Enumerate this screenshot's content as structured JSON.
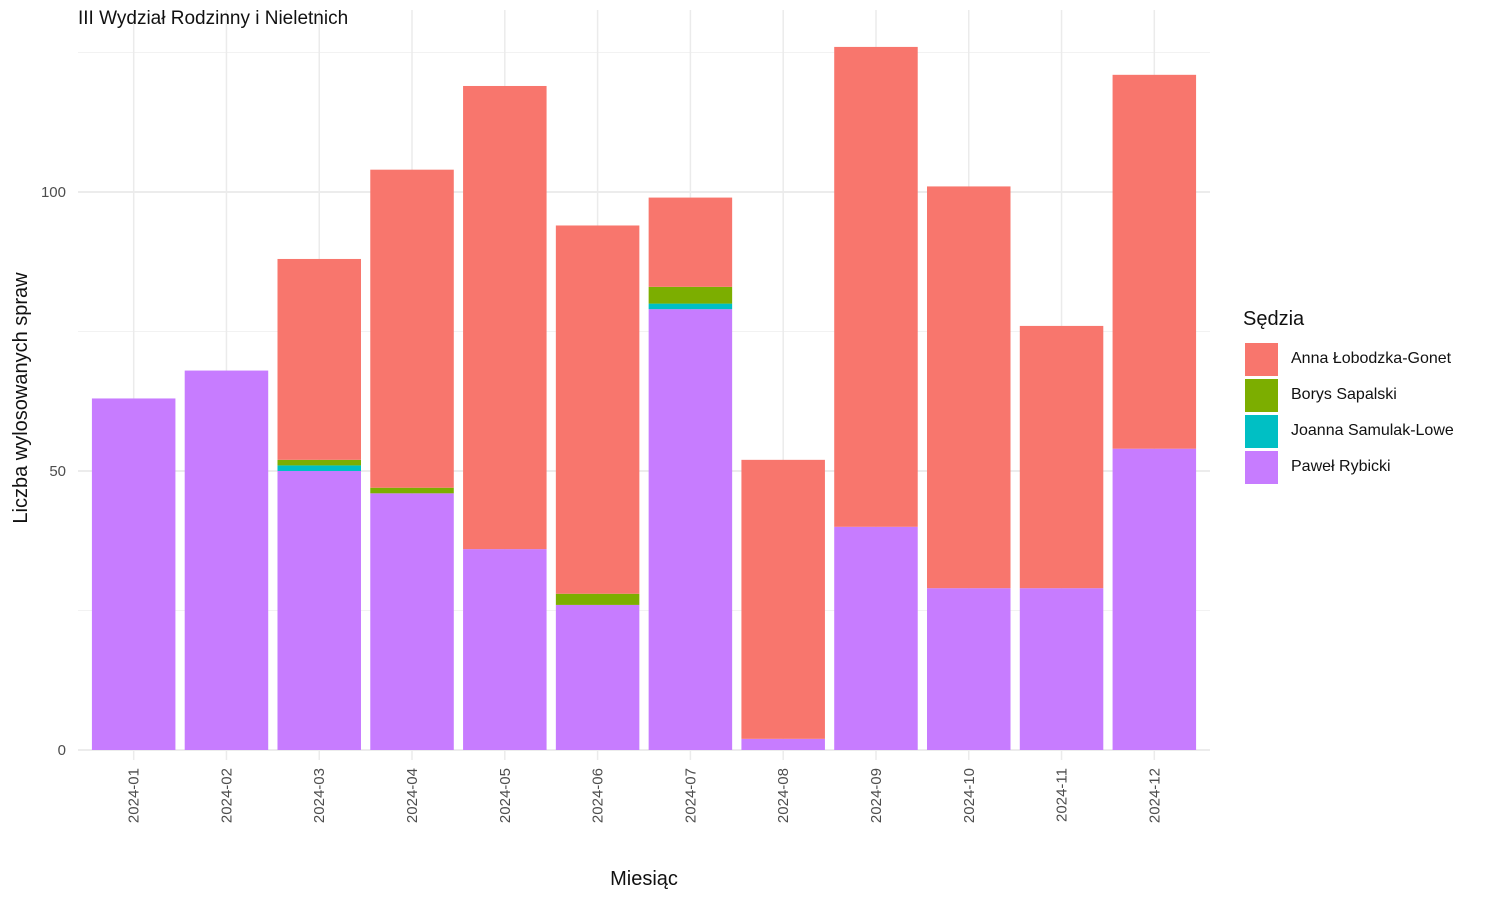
{
  "chart_data": {
    "type": "bar",
    "stacked": true,
    "title": "III Wydział Rodzinny i Nieletnich",
    "xlabel": "Miesiąc",
    "ylabel": "Liczba wylosowanych spraw",
    "ylim": [
      0,
      128
    ],
    "yticks": [
      0,
      50,
      100
    ],
    "grid": true,
    "legend_title": "Sędzia",
    "legend_position": "right",
    "categories": [
      "2024-01",
      "2024-02",
      "2024-03",
      "2024-04",
      "2024-05",
      "2024-06",
      "2024-07",
      "2024-08",
      "2024-09",
      "2024-10",
      "2024-11",
      "2024-12"
    ],
    "series": [
      {
        "name": "Paweł Rybicki",
        "color": "#C77CFF",
        "values": [
          63,
          68,
          50,
          46,
          36,
          26,
          79,
          2,
          40,
          29,
          29,
          54
        ]
      },
      {
        "name": "Joanna Samulak-Lowe",
        "color": "#00BFC4",
        "values": [
          0,
          0,
          1,
          0,
          0,
          0,
          1,
          0,
          0,
          0,
          0,
          0
        ]
      },
      {
        "name": "Borys Sapalski",
        "color": "#7CAE00",
        "values": [
          0,
          0,
          1,
          1,
          0,
          2,
          3,
          0,
          0,
          0,
          0,
          0
        ]
      },
      {
        "name": "Anna Łobodzka-Gonet",
        "color": "#F8766D",
        "values": [
          0,
          0,
          36,
          57,
          83,
          66,
          16,
          50,
          86,
          72,
          47,
          67
        ]
      }
    ],
    "legend_order": [
      "Anna Łobodzka-Gonet",
      "Borys Sapalski",
      "Joanna Samulak-Lowe",
      "Paweł Rybicki"
    ]
  }
}
